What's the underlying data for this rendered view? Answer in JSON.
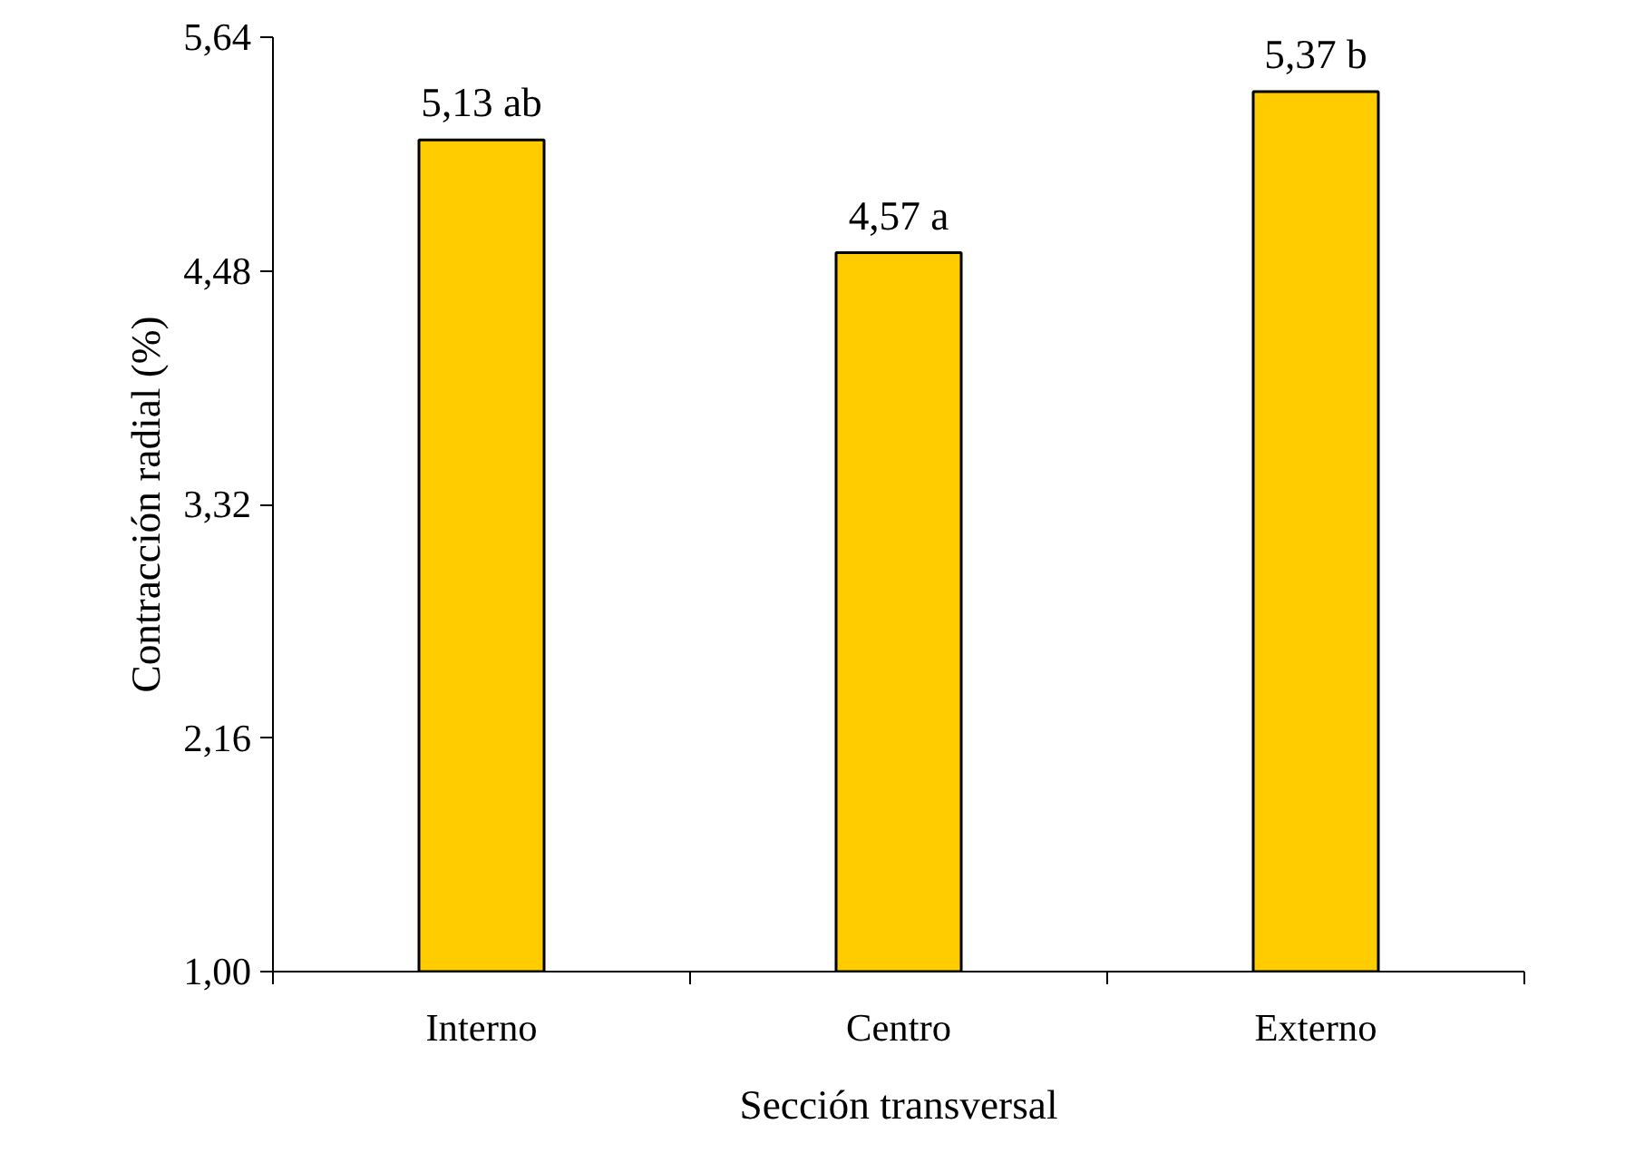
{
  "chart_data": {
    "type": "bar",
    "xlabel": "Sección transversal",
    "ylabel": "Contracción radial (%)",
    "categories": [
      "Interno",
      "Centro",
      "Externo"
    ],
    "values": [
      5.13,
      4.57,
      5.37
    ],
    "value_labels": [
      "5,13 ab",
      "4,57 a",
      "5,37 b"
    ],
    "color": "#ffcc00",
    "ylim": [
      1.0,
      5.64
    ],
    "yticks": [
      {
        "value": 1.0,
        "label": "1,00"
      },
      {
        "value": 2.16,
        "label": "2,16"
      },
      {
        "value": 3.32,
        "label": "3,32"
      },
      {
        "value": 4.48,
        "label": "4,48"
      },
      {
        "value": 5.64,
        "label": "5,64"
      }
    ],
    "grid": false
  }
}
